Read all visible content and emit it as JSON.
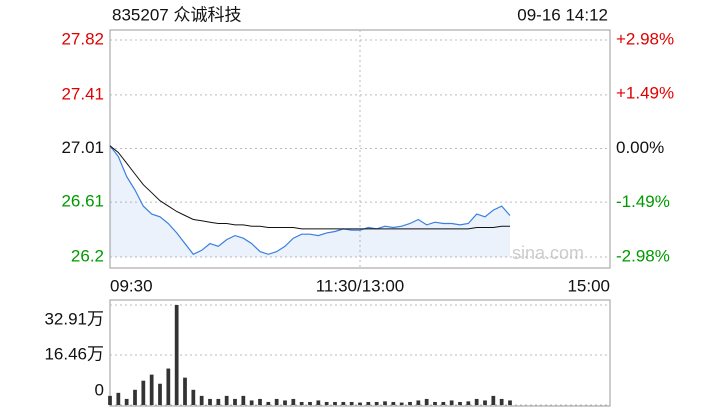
{
  "header": {
    "code_name": "835207 众诚科技",
    "time": "09-16 14:12"
  },
  "watermark": "sina.com",
  "chart_data": [
    {
      "type": "line",
      "x": [
        0,
        4,
        8,
        12,
        16,
        20,
        24,
        28,
        32,
        36,
        40,
        44,
        48,
        52,
        56,
        60,
        64,
        68,
        72,
        76,
        80,
        84,
        88,
        92,
        96,
        100,
        104,
        108,
        112,
        116,
        120,
        124,
        128,
        132,
        136,
        140,
        144,
        148,
        152,
        156,
        160,
        164,
        168,
        172,
        176,
        180,
        184,
        188,
        192
      ],
      "series": [
        {
          "color": "#3a7fe0",
          "values": [
            27.03,
            26.95,
            26.8,
            26.7,
            26.58,
            26.52,
            26.5,
            26.45,
            26.38,
            26.3,
            26.22,
            26.25,
            26.3,
            26.28,
            26.33,
            26.36,
            26.34,
            26.3,
            26.24,
            26.22,
            26.24,
            26.28,
            26.34,
            26.37,
            26.37,
            26.36,
            26.38,
            26.39,
            26.41,
            26.4,
            26.4,
            26.42,
            26.41,
            26.43,
            26.42,
            26.43,
            26.45,
            26.48,
            26.44,
            26.46,
            26.45,
            26.45,
            26.44,
            26.45,
            26.52,
            26.5,
            26.55,
            26.58,
            26.51
          ]
        },
        {
          "color": "#111111",
          "values": [
            27.03,
            26.98,
            26.9,
            26.82,
            26.74,
            26.68,
            26.62,
            26.58,
            26.54,
            26.51,
            26.48,
            26.47,
            26.46,
            26.45,
            26.45,
            26.44,
            26.44,
            26.43,
            26.43,
            26.42,
            26.42,
            26.42,
            26.42,
            26.41,
            26.41,
            26.41,
            26.41,
            26.41,
            26.41,
            26.41,
            26.41,
            26.41,
            26.41,
            26.41,
            26.41,
            26.41,
            26.41,
            26.41,
            26.41,
            26.41,
            26.41,
            26.41,
            26.41,
            26.41,
            26.42,
            26.42,
            26.42,
            26.43,
            26.43
          ]
        }
      ],
      "xlim": [
        0,
        240
      ],
      "xticks": [
        {
          "value": 0,
          "label": "09:30"
        },
        {
          "value": 120,
          "label": "11:30/13:00"
        },
        {
          "value": 240,
          "label": "15:00"
        }
      ],
      "ylim": [
        26.2,
        27.82
      ],
      "yticks": [
        27.82,
        27.41,
        27.01,
        26.61,
        26.2
      ],
      "y2lim": [
        -2.98,
        2.98
      ],
      "y2ticks": [
        {
          "value": 2.98,
          "label": "+2.98%"
        },
        {
          "value": 1.49,
          "label": "+1.49%"
        },
        {
          "value": 0,
          "label": "0.00%"
        },
        {
          "value": -1.49,
          "label": "-1.49%"
        },
        {
          "value": -2.98,
          "label": "-2.98%"
        }
      ],
      "up_color": "#e00000",
      "down_color": "#009a00",
      "grid": true
    },
    {
      "type": "bar",
      "x": [
        0,
        4,
        8,
        12,
        16,
        20,
        24,
        28,
        32,
        36,
        40,
        44,
        48,
        52,
        56,
        60,
        64,
        68,
        72,
        76,
        80,
        84,
        88,
        92,
        96,
        100,
        104,
        108,
        112,
        116,
        120,
        124,
        128,
        132,
        136,
        140,
        144,
        148,
        152,
        156,
        160,
        164,
        168,
        172,
        176,
        180,
        184,
        188,
        192
      ],
      "values": [
        3,
        4,
        2,
        5,
        8,
        10,
        7,
        12,
        32.91,
        9,
        5,
        3,
        2,
        2,
        3,
        2,
        3,
        1.5,
        2,
        1,
        2,
        1.5,
        2,
        1,
        1,
        1.5,
        1,
        1,
        1,
        1,
        0.8,
        1,
        1,
        1.2,
        1,
        0.8,
        1,
        1.5,
        2,
        1,
        1,
        1.5,
        1,
        1.2,
        2,
        1.5,
        3,
        2,
        1.5
      ],
      "color": "#333333",
      "xlim": [
        0,
        240
      ],
      "ylim": [
        0,
        32.91
      ],
      "yticks": [
        {
          "value": 32.91,
          "label": "32.91万"
        },
        {
          "value": 16.46,
          "label": "16.46万"
        },
        0
      ],
      "grid": true
    }
  ]
}
